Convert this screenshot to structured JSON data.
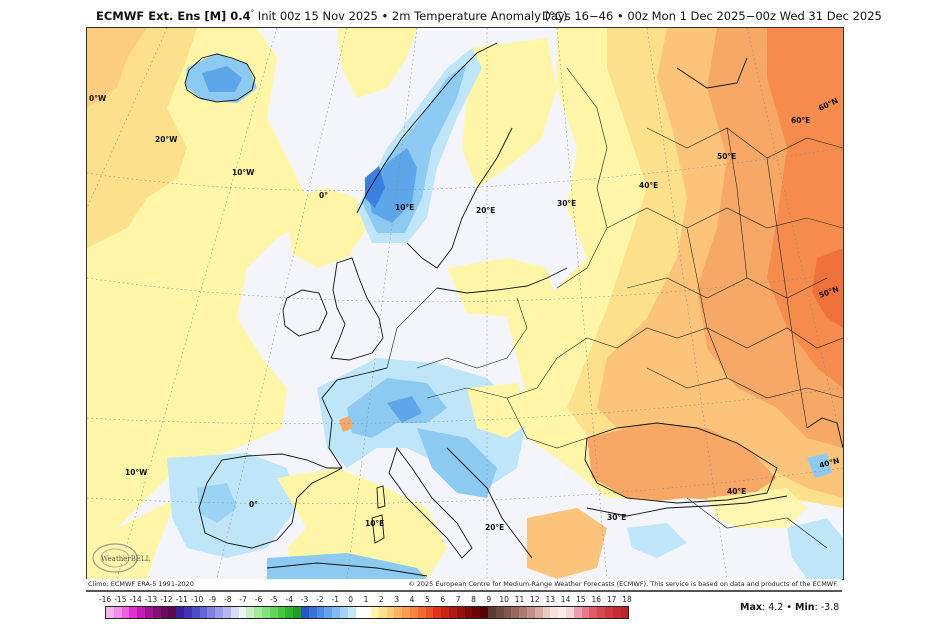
{
  "header": {
    "model": "ECMWF Ext. Ens [M] 0.4",
    "degree_symbol": "°",
    "init": " Init 00z 15 Nov 2025 • 2m Temperature Anomaly (°C)",
    "period": "Days 16−46 • 00z Mon 1 Dec 2025−00z Wed 31 Dec 2025"
  },
  "map": {
    "graticule_labels": {
      "lon_30w": "0°W",
      "lon_20w": "20°W",
      "lon_10w_north": "10°W",
      "lon_0_north": "0°",
      "lon_10e_north": "10°E",
      "lon_20e_north": "20°E",
      "lon_30e_north": "30°E",
      "lon_40e_north": "40°E",
      "lon_50e": "50°E",
      "lon_60e": "60°E",
      "lat_60n": "60°N",
      "lat_50n": "50°N",
      "lat_40n": "40°N",
      "lon_10w_south": "10°W",
      "lon_0_south": "0°",
      "lon_10e_south": "10°E",
      "lon_20e_south": "20°E",
      "lon_30e_south": "30°E",
      "lon_40e_south": "40°E"
    },
    "logo_text": "WeatherBELL",
    "colors": {
      "ocean_neutral": "#f3f5fb",
      "warm_1": "#fff6a8",
      "warm_2": "#fde08c",
      "warm_3": "#fbc47a",
      "warm_4": "#f8a866",
      "warm_5": "#f58c4e",
      "warm_6": "#f0703c",
      "cool_1": "#bfe6f8",
      "cool_2": "#8ccaf2",
      "cool_3": "#5ea6ea",
      "cool_4": "#3b7fe0"
    }
  },
  "credits": {
    "climo": "Climo: ECMWF ERA-5 1991-2020",
    "copyright": "© 2025 European Centre for Medium-Range Weather Forecasts (ECMWF). This service is based on data and products of the ECMWF."
  },
  "colorbar": {
    "ticks": [
      "-16",
      "-15",
      "-14",
      "-13",
      "-12",
      "-11",
      "-10",
      "-9",
      "-8",
      "-7",
      "-6",
      "-5",
      "-4",
      "-3",
      "-2",
      "-1",
      "0",
      "1",
      "2",
      "3",
      "4",
      "5",
      "6",
      "7",
      "8",
      "9",
      "10",
      "11",
      "12",
      "13",
      "14",
      "15",
      "16",
      "17",
      "18"
    ],
    "colors": [
      "#f7b4f0",
      "#f38ee9",
      "#ee5fe0",
      "#e030d0",
      "#c21cb3",
      "#a31394",
      "#850f78",
      "#6a0c5e",
      "#5a0a4c",
      "#3a1f9a",
      "#3f33b8",
      "#4d4cc9",
      "#6666d6",
      "#8080e0",
      "#9c9ce8",
      "#b7b7f0",
      "#d8dcf7",
      "#eef3fb",
      "#c8f0c0",
      "#a6e89a",
      "#84e07a",
      "#63d65a",
      "#44c83e",
      "#2db52c",
      "#1fa023",
      "#2858c8",
      "#3a72dc",
      "#4f8ae6",
      "#67a2ee",
      "#83bbf4",
      "#a3d3f8",
      "#c6e8fb",
      "#ffffff",
      "#ffffff",
      "#fff4a8",
      "#ffe08c",
      "#ffcc76",
      "#fdb562",
      "#fb9c50",
      "#f88442",
      "#f46a34",
      "#ec4e26",
      "#e0321c",
      "#c82418",
      "#b01a14",
      "#981010",
      "#800a0a",
      "#6a0606",
      "#580404",
      "#5a3a30",
      "#6e4a3e",
      "#83594c",
      "#98695c",
      "#ad7b6e",
      "#c39085",
      "#d8aba2",
      "#ebc9c3",
      "#f6e0dc",
      "#fbeae8",
      "#f6d3d6",
      "#ef9db0",
      "#e87a8c",
      "#e05e6a",
      "#d84a52",
      "#cf3a40",
      "#c62e34",
      "#bd2428"
    ]
  },
  "stats": {
    "max_label": "Max",
    "max_value": ": 4.2 • ",
    "min_label": "Min",
    "min_value": ": -3.8"
  }
}
